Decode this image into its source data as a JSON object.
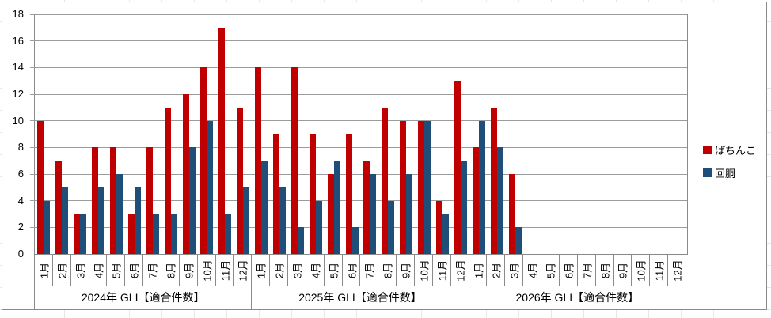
{
  "chart_data": {
    "type": "bar",
    "title": "",
    "y_axis": {
      "min": 0,
      "max": 18,
      "step": 2,
      "tick_labels": [
        "0",
        "2",
        "4",
        "6",
        "8",
        "10",
        "12",
        "14",
        "16",
        "18"
      ]
    },
    "month_labels": [
      "1月",
      "2月",
      "3月",
      "4月",
      "5月",
      "6月",
      "7月",
      "8月",
      "9月",
      "10月",
      "11月",
      "12月"
    ],
    "groups": [
      {
        "label": "2024年 GLI【適合件数】"
      },
      {
        "label": "2025年 GLI【適合件数】"
      },
      {
        "label": "2026年 GLI【適合件数】"
      }
    ],
    "series": [
      {
        "name": "ぱちんこ",
        "color": "#C00000",
        "values": [
          10,
          7,
          3,
          8,
          8,
          3,
          8,
          11,
          12,
          14,
          17,
          11,
          14,
          9,
          14,
          9,
          6,
          9,
          7,
          11,
          10,
          10,
          4,
          13,
          8,
          11,
          6,
          null,
          null,
          null,
          null,
          null,
          null,
          null,
          null,
          null
        ]
      },
      {
        "name": "回胴",
        "color": "#1F4E79",
        "values": [
          4,
          5,
          3,
          5,
          6,
          5,
          3,
          3,
          8,
          10,
          3,
          5,
          7,
          5,
          2,
          4,
          7,
          2,
          6,
          4,
          6,
          10,
          3,
          7,
          10,
          8,
          2,
          null,
          null,
          null,
          null,
          null,
          null,
          null,
          null,
          null
        ]
      }
    ],
    "legend_position": "right",
    "gridlines": true
  }
}
